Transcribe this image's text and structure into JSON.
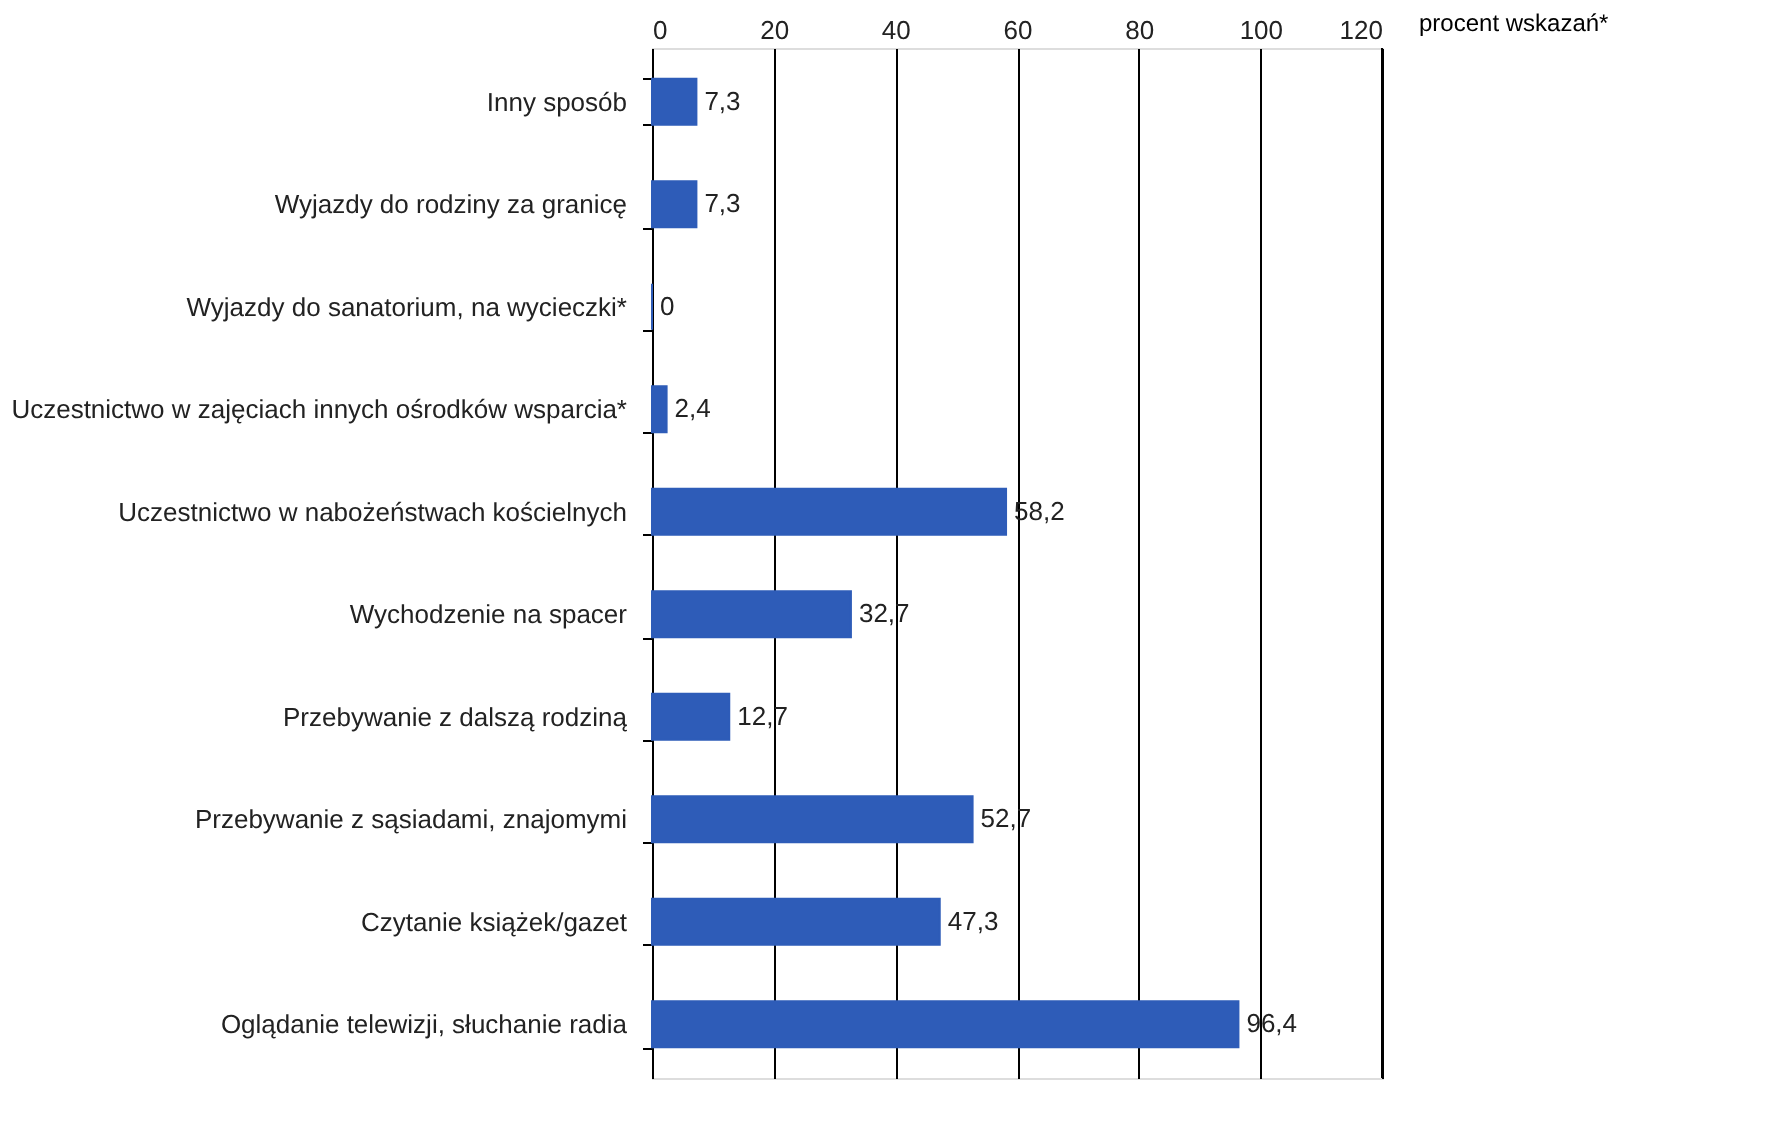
{
  "chart_data": {
    "type": "bar",
    "orientation": "horizontal",
    "xlabel": "procent wskazań*",
    "categories": [
      "Inny sposób",
      "Wyjazdy do rodziny za granicę",
      "Wyjazdy do sanatorium, na wycieczki*",
      "Uczestnictwo w zajęciach innych ośrodków wsparcia*",
      "Uczestnictwo w nabożeństwach kościelnych",
      "Wychodzenie na spacer",
      "Przebywanie z dalszą rodziną",
      "Przebywanie z sąsiadami, znajomymi",
      "Czytanie książek/gazet",
      "Oglądanie telewizji, słuchanie radia"
    ],
    "values": [
      7.3,
      7.3,
      0,
      2.4,
      58.2,
      32.7,
      12.7,
      52.7,
      47.3,
      96.4
    ],
    "value_labels": [
      "7,3",
      "7,3",
      "0",
      "2,4",
      "58,2",
      "32,7",
      "12,7",
      "52,7",
      "47,3",
      "96,4"
    ],
    "color": "#2e5cb8",
    "xlim": [
      0,
      120
    ],
    "xticks": [
      0,
      20,
      40,
      60,
      80,
      100,
      120
    ],
    "grid": "x"
  }
}
